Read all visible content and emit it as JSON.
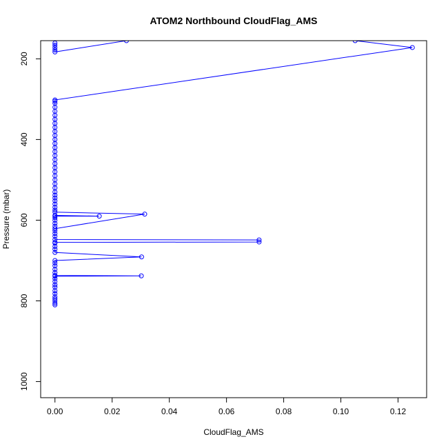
{
  "chart_data": {
    "type": "scatter",
    "title": "ATOM2 Northbound CloudFlag_AMS",
    "xlabel": "CloudFlag_AMS",
    "ylabel": "Pressure (mbar)",
    "xlim": [
      -0.005,
      0.13
    ],
    "ylim": [
      1040,
      155
    ],
    "y_reversed": true,
    "xticks": [
      0.0,
      0.02,
      0.04,
      0.06,
      0.08,
      0.1,
      0.12
    ],
    "xtick_labels": [
      "0.00",
      "0.02",
      "0.04",
      "0.06",
      "0.08",
      "0.10",
      "0.12"
    ],
    "yticks": [
      200,
      400,
      600,
      800,
      1000
    ],
    "ytick_labels": [
      "200",
      "400",
      "600",
      "800",
      "1000"
    ],
    "grid": false,
    "series": [
      {
        "color": "#0000ff",
        "points": [
          [
            0.0,
            810
          ],
          [
            0.0,
            806
          ],
          [
            0.0,
            800
          ],
          [
            0.0,
            795
          ],
          [
            0.0,
            790
          ],
          [
            0.0,
            782
          ],
          [
            0.0,
            775
          ],
          [
            0.0,
            766
          ],
          [
            0.0,
            760
          ],
          [
            0.0,
            752
          ],
          [
            0.0,
            745
          ],
          [
            0.0,
            739
          ],
          [
            0.0302,
            738
          ],
          [
            0.0,
            737
          ],
          [
            0.0,
            730
          ],
          [
            0.0,
            722
          ],
          [
            0.0,
            713
          ],
          [
            0.0,
            706
          ],
          [
            0.0,
            700
          ],
          [
            0.0303,
            691
          ],
          [
            0.0,
            680
          ],
          [
            0.0,
            672
          ],
          [
            0.0,
            665
          ],
          [
            0.0,
            657
          ],
          [
            0.0,
            655
          ],
          [
            0.0714,
            654
          ],
          [
            0.0714,
            649
          ],
          [
            0.0,
            648
          ],
          [
            0.0,
            640
          ],
          [
            0.0,
            633
          ],
          [
            0.0,
            626
          ],
          [
            0.0,
            621
          ],
          [
            0.0314,
            585
          ],
          [
            0.0,
            580
          ],
          [
            0.0,
            575
          ],
          [
            0.0,
            568
          ],
          [
            0.0,
            560
          ],
          [
            0.0,
            552
          ],
          [
            0.0,
            545
          ],
          [
            0.0,
            538
          ],
          [
            0.0,
            530
          ],
          [
            0.0,
            520
          ],
          [
            0.0,
            510
          ],
          [
            0.0,
            500
          ],
          [
            0.0,
            490
          ],
          [
            0.0,
            480
          ],
          [
            0.0,
            470
          ],
          [
            0.0,
            460
          ],
          [
            0.0,
            450
          ],
          [
            0.0,
            440
          ],
          [
            0.0,
            430
          ],
          [
            0.0,
            420
          ],
          [
            0.0,
            410
          ],
          [
            0.0,
            400
          ],
          [
            0.0,
            390
          ],
          [
            0.0,
            380
          ],
          [
            0.0,
            370
          ],
          [
            0.0,
            360
          ],
          [
            0.0,
            350
          ],
          [
            0.0,
            340
          ],
          [
            0.0,
            330
          ],
          [
            0.0,
            320
          ],
          [
            0.0,
            310
          ],
          [
            0.0,
            305
          ],
          [
            0.0,
            302
          ],
          [
            0.125,
            172
          ],
          [
            0.105,
            155
          ],
          [
            0.025,
            155
          ],
          [
            0.0,
            183
          ],
          [
            0.0,
            178
          ],
          [
            0.0,
            172
          ],
          [
            0.0,
            166
          ],
          [
            0.0,
            161
          ]
        ]
      },
      {
        "color": "#0000ff",
        "points": [
          [
            0.0,
            615
          ],
          [
            0.0,
            608
          ],
          [
            0.0,
            600
          ],
          [
            0.0,
            594
          ],
          [
            0.0,
            590
          ],
          [
            0.0155,
            590
          ],
          [
            0.0,
            588
          ]
        ]
      }
    ]
  }
}
